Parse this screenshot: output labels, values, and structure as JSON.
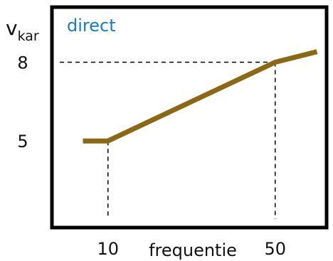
{
  "chart_data": {
    "type": "line",
    "title": "",
    "xlabel": "frequentie",
    "ylabel_main": "v",
    "ylabel_sub": "kar",
    "series_label": "direct",
    "series": [
      {
        "x": [
          4,
          10,
          50,
          60
        ],
        "y": [
          5.0,
          5.0,
          8.0,
          8.4
        ]
      }
    ],
    "reference_lines": {
      "x": [
        10,
        50
      ],
      "y": [
        8
      ]
    },
    "x_ticks": [
      10,
      50
    ],
    "y_ticks": [
      5,
      8
    ],
    "xlim": [
      -3.4,
      62.3
    ],
    "ylim": [
      1.7,
      10.1
    ],
    "colors": {
      "line": "#8B6914",
      "frame": "#000000",
      "series_label": "#1A7BBF",
      "reference": "#000000"
    },
    "grid": false
  }
}
